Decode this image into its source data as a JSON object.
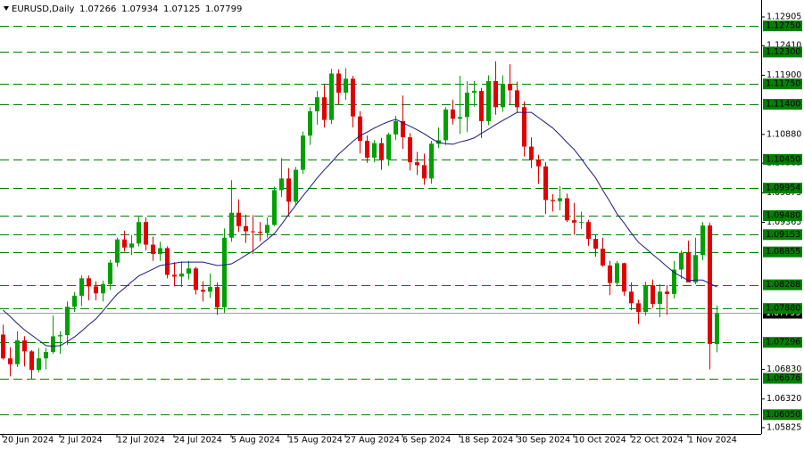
{
  "chart_data": {
    "type": "candlestick",
    "header": {
      "symbol": "EURUSD,Daily",
      "open": 1.07266,
      "high": 1.07934,
      "low": 1.07125,
      "close": 1.07799
    },
    "ylim": [
      1.05717,
      1.13197
    ],
    "yticks": [
      1.12905,
      {
        "value": 1.1241,
        "label": "1.12410"
      },
      {
        "value": 1.119,
        "label": "1.11900"
      },
      {
        "value": 1.1088,
        "label": "1.10880"
      },
      1.10385,
      1.09875,
      1.09365,
      {
        "value": 1.0683,
        "label": "1.06830"
      },
      {
        "value": 1.0632,
        "label": "1.06320"
      },
      1.05825
    ],
    "levels": [
      {
        "value": 1.1275,
        "label": "1.12750"
      },
      {
        "value": 1.123,
        "label": "1.12300"
      },
      {
        "value": 1.1175,
        "label": "1.11750"
      },
      {
        "value": 1.114,
        "label": "1.11400"
      },
      {
        "value": 1.1045,
        "label": "1.10450"
      },
      1.09954,
      {
        "value": 1.0948,
        "label": "1.09480"
      },
      1.09153,
      1.08855,
      1.08288,
      {
        "value": 1.0788,
        "label": "1.07880"
      },
      1.07296,
      1.06676,
      {
        "value": 1.0605,
        "label": "1.06050"
      }
    ],
    "bull_color": "#00a000",
    "bear_color": "#e00000",
    "level_color": "#008000",
    "ma_color": "#1a1a80",
    "x": [
      "20 Jun 2024",
      null,
      null,
      null,
      null,
      null,
      null,
      null,
      "2 Jul 2024",
      null,
      null,
      null,
      null,
      null,
      null,
      null,
      "12 Jul 2024",
      null,
      null,
      null,
      null,
      null,
      null,
      null,
      "24 Jul 2024",
      null,
      null,
      null,
      null,
      null,
      null,
      null,
      "5 Aug 2024",
      null,
      null,
      null,
      null,
      null,
      null,
      null,
      "15 Aug 2024",
      null,
      null,
      null,
      null,
      null,
      null,
      null,
      "27 Aug 2024",
      null,
      null,
      null,
      null,
      null,
      null,
      null,
      "6 Sep 2024",
      null,
      null,
      null,
      null,
      null,
      null,
      null,
      "18 Sep 2024",
      null,
      null,
      null,
      null,
      null,
      null,
      null,
      "30 Sep 2024",
      null,
      null,
      null,
      null,
      null,
      null,
      null,
      "10 Oct 2024",
      null,
      null,
      null,
      null,
      null,
      null,
      null,
      "22 Oct 2024",
      null,
      null,
      null,
      null,
      null,
      null,
      null,
      "1 Nov 2024",
      null,
      null,
      null,
      null
    ],
    "open": [
      1.0743,
      1.0702,
      1.0692,
      1.0733,
      1.0714,
      1.0682,
      1.0702,
      1.0713,
      1.074,
      1.0742,
      1.0791,
      1.081,
      1.084,
      1.0826,
      1.0814,
      1.083,
      1.0867,
      1.0907,
      1.0893,
      1.09,
      1.0937,
      1.0898,
      1.0882,
      1.0892,
      1.0846,
      1.0843,
      1.0848,
      1.0857,
      1.082,
      1.0817,
      1.0825,
      1.079,
      1.091,
      1.0953,
      1.093,
      1.0921,
      1.092,
      1.0918,
      1.0932,
      1.0992,
      1.1012,
      1.0972,
      1.1027,
      1.1086,
      1.1128,
      1.1152,
      1.1113,
      1.1193,
      1.116,
      1.1184,
      1.1119,
      1.1077,
      1.1048,
      1.1073,
      1.1045,
      1.1088,
      1.1111,
      1.1083,
      1.104,
      1.1035,
      1.1012,
      1.1072,
      1.1078,
      1.1131,
      1.1115,
      1.1118,
      1.116,
      1.1163,
      1.1111,
      1.118,
      1.1135,
      1.1175,
      1.1164,
      1.1135,
      1.1067,
      1.1044,
      1.1033,
      1.0975,
      1.0973,
      1.0978,
      1.094,
      1.0936,
      1.0937,
      1.0908,
      1.0891,
      1.0862,
      1.0832,
      1.0866,
      1.0817,
      1.0797,
      1.0782,
      1.0828,
      1.0796,
      1.0817,
      1.0813,
      1.0855,
      1.0884,
      1.0833,
      1.088,
      1.0931,
      1.07266
    ],
    "high": [
      1.076,
      1.0721,
      1.0749,
      1.074,
      1.0716,
      1.072,
      1.072,
      1.0776,
      1.0749,
      1.08,
      1.0816,
      1.0845,
      1.0845,
      1.0835,
      1.0836,
      1.0872,
      1.091,
      1.0922,
      1.0915,
      1.0948,
      1.0945,
      1.0912,
      1.0903,
      1.0895,
      1.0868,
      1.0869,
      1.087,
      1.086,
      1.0835,
      1.0848,
      1.0833,
      1.0926,
      1.1009,
      1.0976,
      1.095,
      1.0949,
      1.0937,
      1.0945,
      1.0998,
      1.1047,
      1.103,
      1.1032,
      1.1093,
      1.1135,
      1.1163,
      1.1174,
      1.1201,
      1.12,
      1.1202,
      1.1189,
      1.1128,
      1.1086,
      1.1078,
      1.1082,
      1.1091,
      1.112,
      1.1155,
      1.109,
      1.1058,
      1.1055,
      1.1077,
      1.11,
      1.1135,
      1.1148,
      1.1189,
      1.118,
      1.118,
      1.1168,
      1.119,
      1.1214,
      1.119,
      1.1209,
      1.1179,
      1.1145,
      1.1083,
      1.1053,
      1.104,
      1.0985,
      1.0999,
      1.0986,
      1.097,
      1.0955,
      1.0941,
      1.0916,
      1.091,
      1.087,
      1.087,
      1.0867,
      1.0833,
      1.0803,
      1.0834,
      1.0838,
      1.083,
      1.0828,
      1.087,
      1.0888,
      1.0905,
      1.091,
      1.0937,
      1.0936,
      1.07934
    ],
    "low": [
      1.07,
      1.0671,
      1.0687,
      1.0688,
      1.0666,
      1.0678,
      1.0683,
      1.071,
      1.071,
      1.0725,
      1.0782,
      1.0792,
      1.0802,
      1.0802,
      1.08,
      1.082,
      1.086,
      1.0886,
      1.088,
      1.0895,
      1.0888,
      1.087,
      1.087,
      1.084,
      1.0826,
      1.0825,
      1.0838,
      1.0812,
      1.08,
      1.0806,
      1.0777,
      1.078,
      1.0903,
      1.092,
      1.0901,
      1.0882,
      1.0904,
      1.091,
      1.093,
      1.098,
      1.0948,
      1.0965,
      1.102,
      1.107,
      1.1105,
      1.11,
      1.1106,
      1.114,
      1.1148,
      1.11,
      1.1055,
      1.1039,
      1.104,
      1.1027,
      1.1034,
      1.1078,
      1.1063,
      1.1026,
      1.1018,
      1.1001,
      1.1003,
      1.1065,
      1.107,
      1.1105,
      1.1089,
      1.1092,
      1.1136,
      1.1082,
      1.1104,
      1.1122,
      1.1127,
      1.114,
      1.1125,
      1.105,
      1.103,
      1.1003,
      1.0951,
      1.0955,
      1.0957,
      1.0937,
      1.0915,
      1.0925,
      1.0896,
      1.0877,
      1.086,
      1.0811,
      1.0826,
      1.081,
      1.0785,
      1.0761,
      1.0776,
      1.0789,
      1.0773,
      1.0777,
      1.0805,
      1.0839,
      1.0834,
      1.083,
      1.0871,
      1.0683,
      1.07125
    ],
    "close": [
      1.0702,
      1.0692,
      1.0733,
      1.0714,
      1.0682,
      1.0702,
      1.0713,
      1.074,
      1.0742,
      1.0791,
      1.081,
      1.084,
      1.0826,
      1.0814,
      1.083,
      1.0867,
      1.0907,
      1.0893,
      1.09,
      1.0937,
      1.0898,
      1.0882,
      1.0892,
      1.0846,
      1.0843,
      1.0848,
      1.0857,
      1.082,
      1.0817,
      1.0825,
      1.079,
      1.091,
      1.0953,
      1.093,
      1.0921,
      1.092,
      1.0918,
      1.0932,
      1.0992,
      1.1012,
      1.0972,
      1.1027,
      1.1086,
      1.1128,
      1.1152,
      1.1113,
      1.1193,
      1.116,
      1.1184,
      1.1119,
      1.1077,
      1.1048,
      1.1073,
      1.1045,
      1.1088,
      1.1111,
      1.1083,
      1.104,
      1.1035,
      1.1012,
      1.1072,
      1.1078,
      1.1131,
      1.1115,
      1.1118,
      1.116,
      1.1163,
      1.1111,
      1.118,
      1.1135,
      1.1175,
      1.1164,
      1.1135,
      1.1067,
      1.1044,
      1.1033,
      1.0975,
      1.0973,
      1.0978,
      1.094,
      1.0936,
      1.0937,
      1.0908,
      1.0891,
      1.0862,
      1.0832,
      1.0866,
      1.0817,
      1.0797,
      1.0782,
      1.0828,
      1.0796,
      1.0817,
      1.0813,
      1.0855,
      1.0884,
      1.0833,
      1.088,
      1.0931,
      1.0727,
      1.07799
    ],
    "ma": [
      1.0785,
      1.0774,
      1.0762,
      1.0751,
      1.0742,
      1.0733,
      1.0724,
      1.0723,
      1.0724,
      1.0731,
      1.0739,
      1.0749,
      1.076,
      1.077,
      1.0784,
      1.0799,
      1.0813,
      1.0823,
      1.0834,
      1.0844,
      1.085,
      1.0856,
      1.0862,
      1.0864,
      1.0866,
      1.0868,
      1.0868,
      1.0868,
      1.0868,
      1.0865,
      1.0862,
      1.0863,
      1.0865,
      1.0872,
      1.088,
      1.0887,
      1.0897,
      1.0907,
      1.0917,
      1.0933,
      1.095,
      1.0966,
      1.0982,
      1.0997,
      1.1013,
      1.1027,
      1.104,
      1.1054,
      1.1065,
      1.1076,
      1.1086,
      1.1092,
      1.1099,
      1.1105,
      1.111,
      1.1114,
      1.1108,
      1.1102,
      1.1096,
      1.1089,
      1.1081,
      1.1074,
      1.1072,
      1.1071,
      1.1075,
      1.1078,
      1.1082,
      1.109,
      1.1097,
      1.1105,
      1.1112,
      1.1119,
      1.1126,
      1.1126,
      1.1126,
      1.1117,
      1.1108,
      1.1099,
      1.1087,
      1.1074,
      1.1062,
      1.1046,
      1.1029,
      1.1013,
      1.0992,
      1.0972,
      1.0951,
      1.0935,
      1.0918,
      1.0902,
      1.0892,
      1.0881,
      1.0871,
      1.086,
      1.085,
      1.0843,
      1.0836,
      1.0837,
      1.0837,
      1.0831,
      1.0825
    ]
  }
}
